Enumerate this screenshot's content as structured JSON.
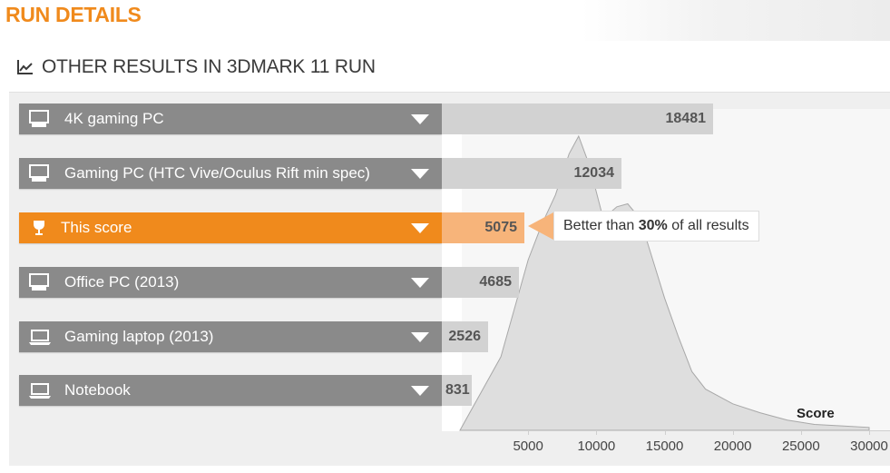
{
  "page": {
    "title": "RUN DETAILS",
    "section_title": "OTHER RESULTS IN 3DMARK 11 RUN",
    "section_icon": "line-chart-icon"
  },
  "rows": [
    {
      "label": "4K gaming PC",
      "score": "18481",
      "icon": "desktop-icon",
      "highlight": false
    },
    {
      "label": "Gaming PC (HTC Vive/Oculus Rift min spec)",
      "score": "12034",
      "icon": "desktop-icon",
      "highlight": false
    },
    {
      "label": "This score",
      "score": "5075",
      "icon": "trophy-icon",
      "highlight": true
    },
    {
      "label": "Office PC (2013)",
      "score": "4685",
      "icon": "desktop-icon",
      "highlight": false
    },
    {
      "label": "Gaming laptop (2013)",
      "score": "2526",
      "icon": "laptop-icon",
      "highlight": false
    },
    {
      "label": "Notebook",
      "score": "831",
      "icon": "laptop-icon",
      "highlight": false
    }
  ],
  "tooltip": {
    "prefix": "Better than ",
    "percent": "30%",
    "suffix": " of all results"
  },
  "colors": {
    "accent": "#f08a1c",
    "accent_light": "#f7b47a",
    "row_gray": "#8a8a8a",
    "bar_gray": "#d2d2d2"
  },
  "chart_data": {
    "type": "area",
    "xlabel": "Score",
    "ylabel": "",
    "xlim": [
      0,
      30000
    ],
    "x_ticks": [
      "5000",
      "10000",
      "15000",
      "20000",
      "25000",
      "30000"
    ],
    "x": [
      0,
      3000,
      5000,
      6000,
      7000,
      8000,
      8700,
      9500,
      10500,
      11500,
      12300,
      13200,
      14000,
      15000,
      16000,
      17000,
      18000,
      20000,
      22000,
      24000,
      26000,
      28000,
      30000
    ],
    "y": [
      0,
      0.25,
      0.58,
      0.7,
      0.8,
      0.94,
      1.0,
      0.9,
      0.72,
      0.76,
      0.77,
      0.72,
      0.6,
      0.45,
      0.32,
      0.2,
      0.14,
      0.09,
      0.06,
      0.035,
      0.02,
      0.015,
      0.01
    ]
  }
}
